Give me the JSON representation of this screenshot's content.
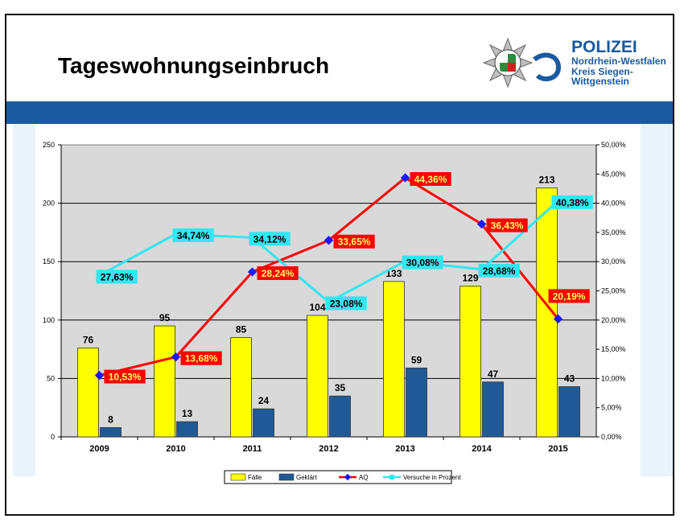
{
  "slide": {
    "title": "Tageswohnungseinbruch",
    "logo": {
      "line1": "POLIZEI",
      "line2": "Nordrhein-Westfalen",
      "line3": "Kreis Siegen-",
      "line4": "Wittgenstein"
    },
    "colors": {
      "band": "#1a5aa0",
      "logo_text": "#1a5aa0"
    }
  },
  "chart_data": {
    "type": "bar",
    "categories": [
      "2009",
      "2010",
      "2011",
      "2012",
      "2013",
      "2014",
      "2015"
    ],
    "series": [
      {
        "name": "Fälle",
        "kind": "bar",
        "axis": "left",
        "color": "#ffff00",
        "values": [
          76,
          95,
          85,
          104,
          133,
          129,
          213
        ],
        "labels": [
          "76",
          "95",
          "85",
          "104",
          "133",
          "129",
          "213"
        ]
      },
      {
        "name": "Geklärt",
        "kind": "bar",
        "axis": "left",
        "color": "#1f5a96",
        "values": [
          8,
          13,
          24,
          35,
          59,
          47,
          43
        ],
        "labels": [
          "8",
          "13",
          "24",
          "35",
          "59",
          "47",
          "43"
        ]
      },
      {
        "name": "AQ",
        "kind": "line",
        "axis": "right",
        "color": "#ff0000",
        "marker_color": "#1a1aff",
        "values": [
          10.53,
          13.68,
          28.24,
          33.65,
          44.36,
          36.43,
          20.19
        ],
        "labels": [
          "10,53%",
          "13,68%",
          "28,24%",
          "33,65%",
          "44,36%",
          "36,43%",
          "20,19%"
        ]
      },
      {
        "name": "Versuche in Prozent",
        "kind": "line",
        "axis": "right",
        "color": "#33e6f0",
        "values": [
          27.63,
          34.74,
          34.12,
          23.08,
          30.08,
          28.68,
          40.38
        ],
        "labels": [
          "27,63%",
          "34,74%",
          "34,12%",
          "23,08%",
          "30,08%",
          "28,68%",
          "40,38%"
        ]
      }
    ],
    "yleft": {
      "min": 0,
      "max": 250,
      "ticks": [
        "0",
        "50",
        "100",
        "150",
        "200",
        "250"
      ]
    },
    "yright": {
      "min": 0,
      "max": 50,
      "ticks": [
        "0,00%",
        "5,00%",
        "10,00%",
        "15,00%",
        "20,00%",
        "25,00%",
        "30,00%",
        "35,00%",
        "40,00%",
        "45,00%",
        "50,00%"
      ]
    },
    "plot_background": "#d9d9d9",
    "grid": true,
    "legend": "bottom"
  }
}
